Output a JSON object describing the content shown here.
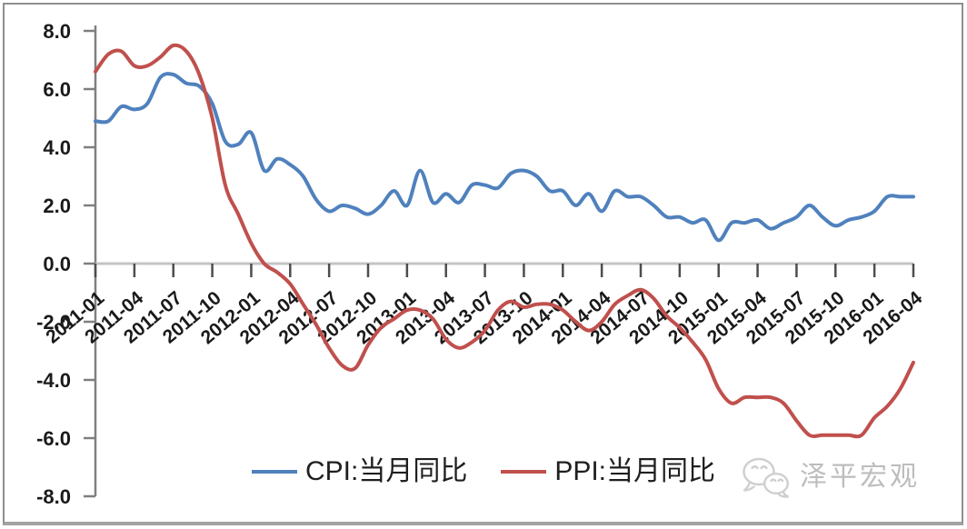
{
  "chart_data": {
    "type": "line",
    "title": "",
    "xlabel": "",
    "ylabel": "",
    "ylim": [
      -8.0,
      8.0
    ],
    "grid": false,
    "legend_position": "bottom-center",
    "x": [
      "2011-01",
      "2011-02",
      "2011-03",
      "2011-04",
      "2011-05",
      "2011-06",
      "2011-07",
      "2011-08",
      "2011-09",
      "2011-10",
      "2011-11",
      "2011-12",
      "2012-01",
      "2012-02",
      "2012-03",
      "2012-04",
      "2012-05",
      "2012-06",
      "2012-07",
      "2012-08",
      "2012-09",
      "2012-10",
      "2012-11",
      "2012-12",
      "2013-01",
      "2013-02",
      "2013-03",
      "2013-04",
      "2013-05",
      "2013-06",
      "2013-07",
      "2013-08",
      "2013-09",
      "2013-10",
      "2013-11",
      "2013-12",
      "2014-01",
      "2014-02",
      "2014-03",
      "2014-04",
      "2014-05",
      "2014-06",
      "2014-07",
      "2014-08",
      "2014-09",
      "2014-10",
      "2014-11",
      "2014-12",
      "2015-01",
      "2015-02",
      "2015-03",
      "2015-04",
      "2015-05",
      "2015-06",
      "2015-07",
      "2015-08",
      "2015-09",
      "2015-10",
      "2015-11",
      "2015-12",
      "2016-01",
      "2016-02",
      "2016-03",
      "2016-04"
    ],
    "x_tick_labels": [
      "2011-01",
      "2011-04",
      "2011-07",
      "2011-10",
      "2012-01",
      "2012-04",
      "2012-07",
      "2012-10",
      "2013-01",
      "2013-04",
      "2013-07",
      "2013-10",
      "2014-01",
      "2014-04",
      "2014-07",
      "2014-10",
      "2015-01",
      "2015-04",
      "2015-07",
      "2015-10",
      "2016-01",
      "2016-04"
    ],
    "y_tick_labels": [
      "8.0",
      "6.0",
      "4.0",
      "2.0",
      "0.0",
      "-2.0",
      "-4.0",
      "-6.0",
      "-8.0"
    ],
    "series": [
      {
        "name": "CPI:当月同比",
        "color": "#4f81bd",
        "values": [
          4.9,
          4.9,
          5.4,
          5.3,
          5.5,
          6.4,
          6.5,
          6.2,
          6.1,
          5.5,
          4.2,
          4.1,
          4.5,
          3.2,
          3.6,
          3.4,
          3.0,
          2.2,
          1.8,
          2.0,
          1.9,
          1.7,
          2.0,
          2.5,
          2.0,
          3.2,
          2.1,
          2.4,
          2.1,
          2.7,
          2.7,
          2.6,
          3.1,
          3.2,
          3.0,
          2.5,
          2.5,
          2.0,
          2.4,
          1.8,
          2.5,
          2.3,
          2.3,
          2.0,
          1.6,
          1.6,
          1.4,
          1.5,
          0.8,
          1.4,
          1.4,
          1.5,
          1.2,
          1.4,
          1.6,
          2.0,
          1.6,
          1.3,
          1.5,
          1.6,
          1.8,
          2.3,
          2.3,
          2.3
        ]
      },
      {
        "name": "PPI:当月同比",
        "color": "#c0504d",
        "values": [
          6.6,
          7.2,
          7.3,
          6.8,
          6.8,
          7.1,
          7.5,
          7.3,
          6.5,
          5.0,
          2.7,
          1.7,
          0.7,
          0.0,
          -0.3,
          -0.7,
          -1.4,
          -2.1,
          -2.9,
          -3.5,
          -3.6,
          -2.8,
          -2.2,
          -1.9,
          -1.6,
          -1.6,
          -1.9,
          -2.6,
          -2.9,
          -2.7,
          -2.3,
          -1.6,
          -1.3,
          -1.5,
          -1.4,
          -1.4,
          -1.6,
          -2.0,
          -2.3,
          -2.0,
          -1.4,
          -1.1,
          -0.9,
          -1.2,
          -1.8,
          -2.2,
          -2.7,
          -3.3,
          -4.3,
          -4.8,
          -4.6,
          -4.6,
          -4.6,
          -4.8,
          -5.4,
          -5.9,
          -5.9,
          -5.9,
          -5.9,
          -5.9,
          -5.3,
          -4.9,
          -4.3,
          -3.4
        ]
      }
    ],
    "axis_style": {
      "zero_line_color": "#c4c4c4",
      "y_axis_color": "#7f7f7f",
      "tick_color": "#4d4d4d",
      "label_color": "#1a1a1a"
    }
  },
  "legend": {
    "items": [
      {
        "label": "CPI:当月同比",
        "color": "#4f81bd"
      },
      {
        "label": "PPI:当月同比",
        "color": "#c0504d"
      }
    ]
  },
  "watermark": {
    "icon": "wechat-icon",
    "text": "泽平宏观",
    "color": "#bdbdbd"
  }
}
